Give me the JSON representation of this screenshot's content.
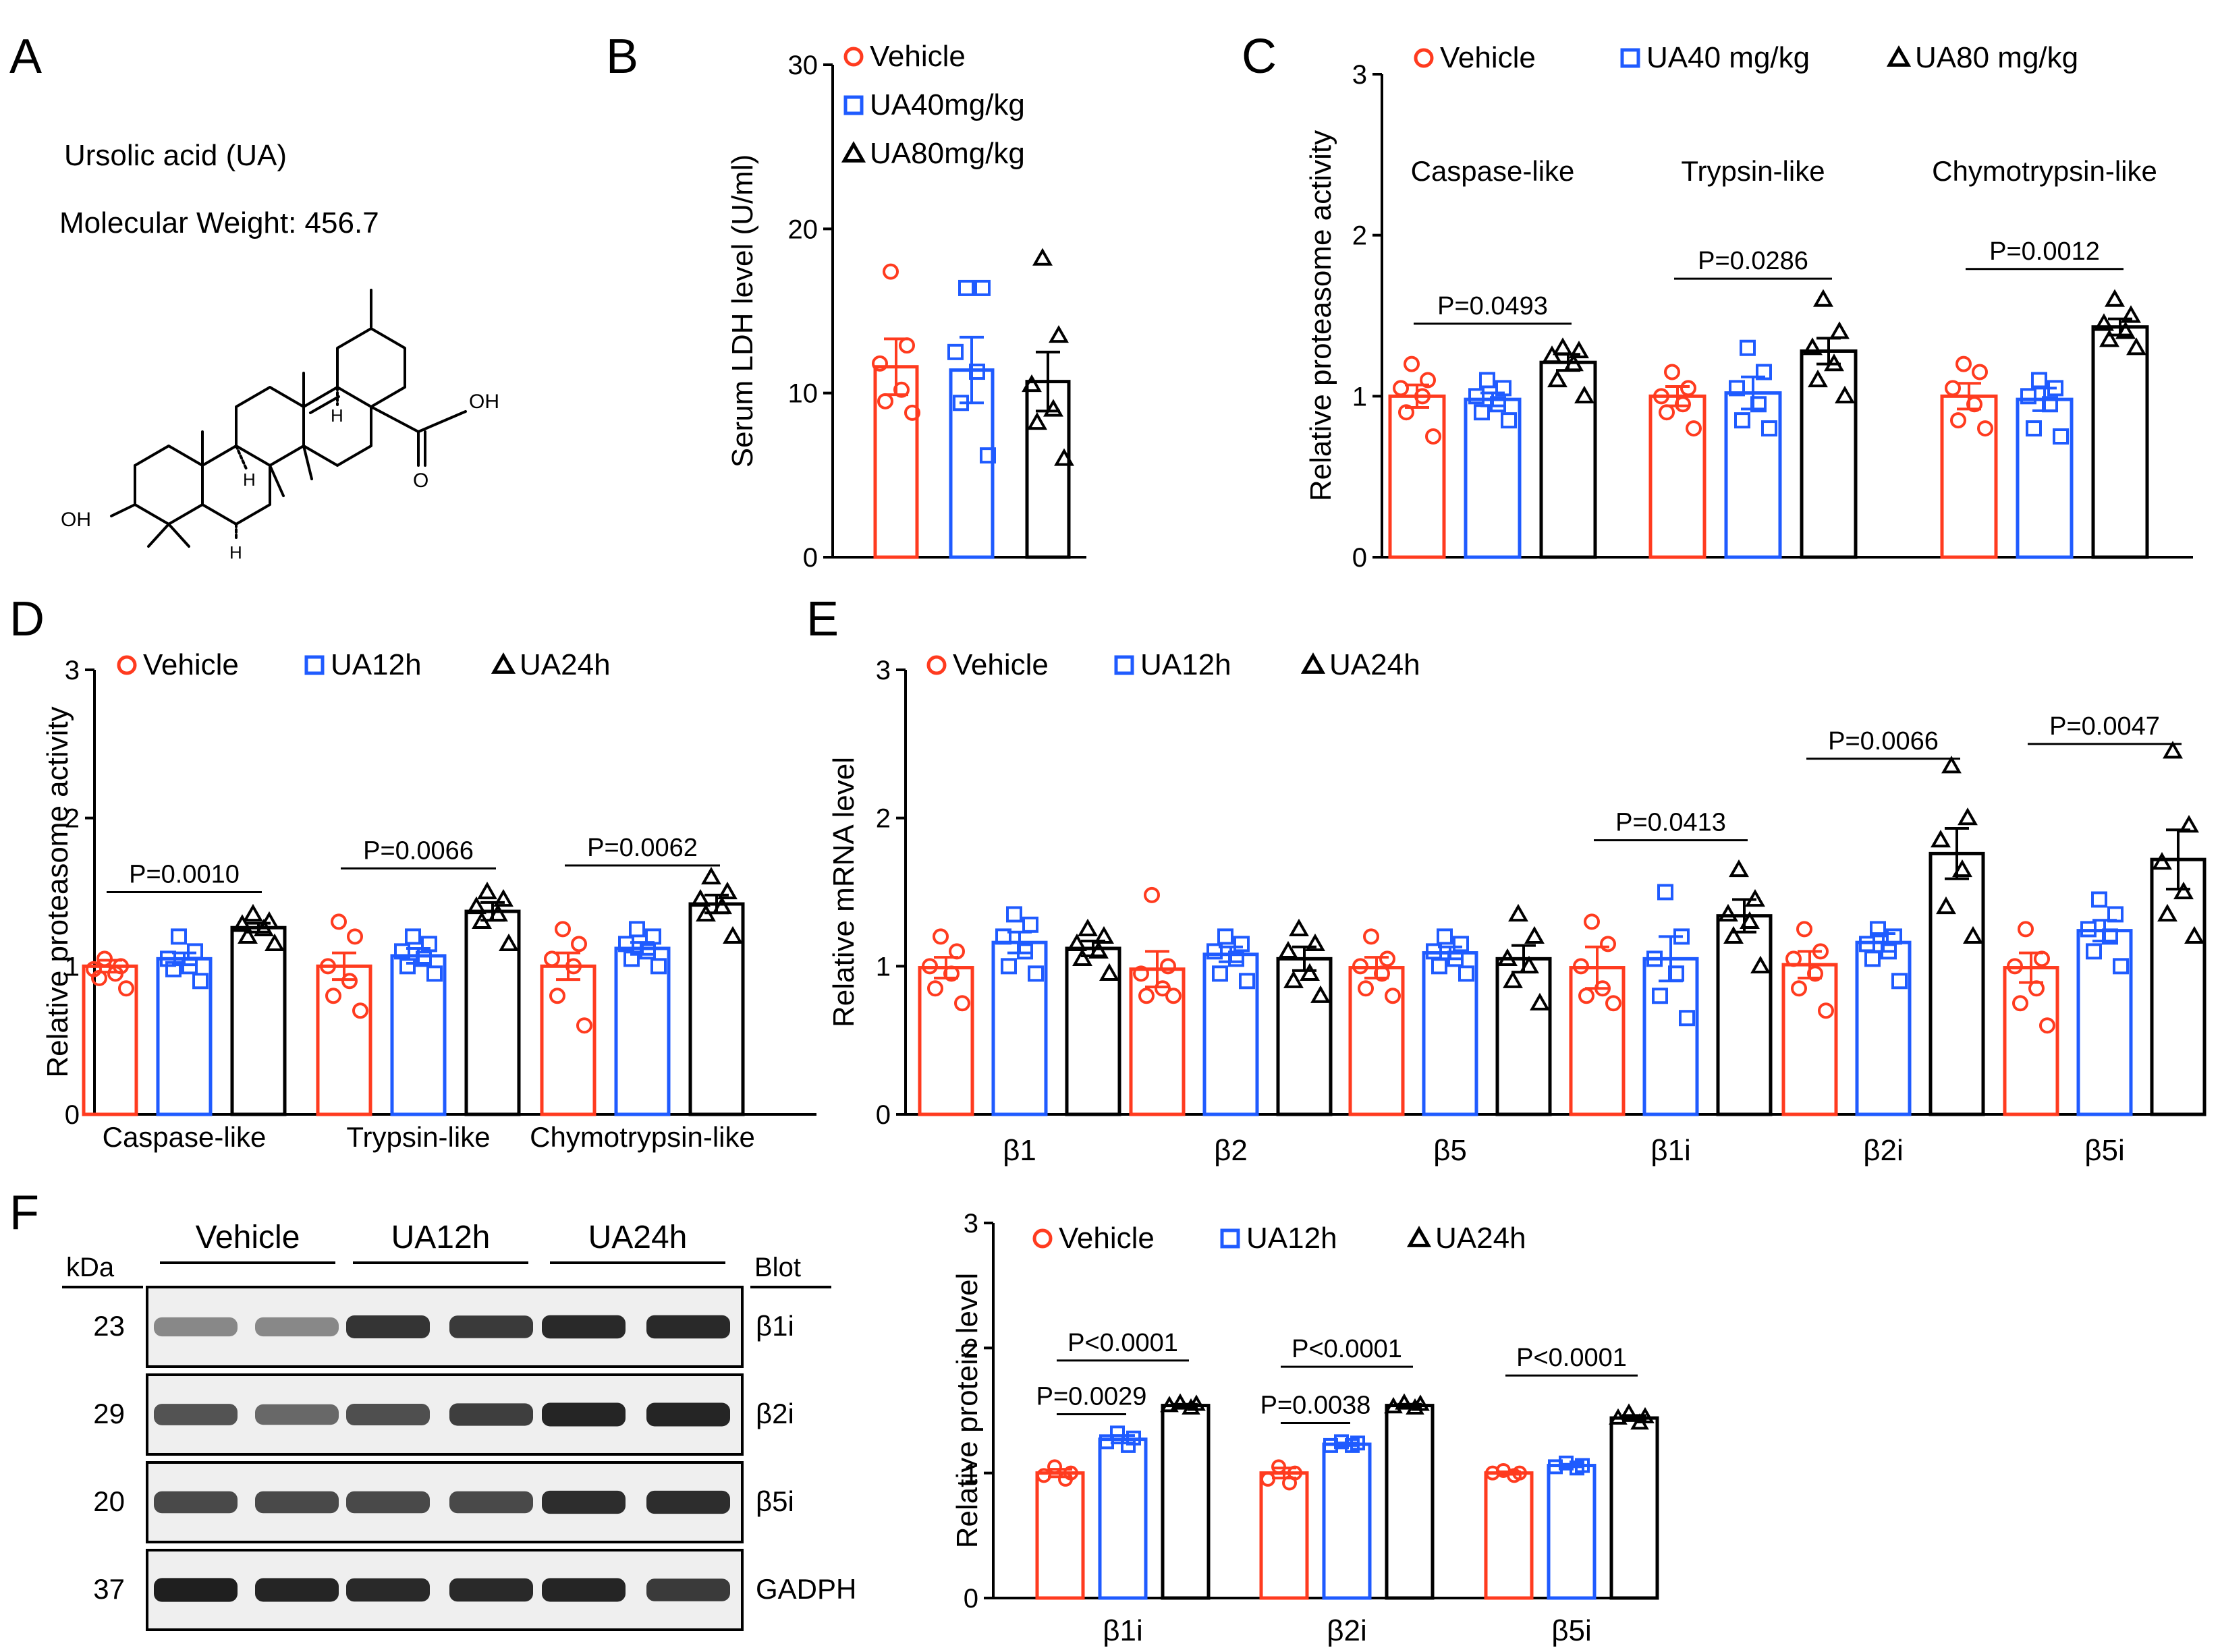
{
  "colors": {
    "vehicle": "#ff3b1f",
    "mid": "#1f5bff",
    "high": "#000000",
    "axis": "#000000"
  },
  "panels": {
    "A": {
      "letter": "A",
      "compound_name": "Ursolic acid (UA)",
      "molecular_weight": "Molecular Weight: 456.7",
      "atom_labels": {
        "hydroxyl": "OH",
        "carboxyl_oh": "OH",
        "carboxyl_o": "O",
        "h": "H"
      }
    },
    "B": {
      "letter": "B"
    },
    "C": {
      "letter": "C"
    },
    "D": {
      "letter": "D"
    },
    "E": {
      "letter": "E"
    },
    "F": {
      "letter": "F"
    }
  },
  "western_blot": {
    "kda_label": "kDa",
    "blot_label": "Blot",
    "groups": [
      "Vehicle",
      "UA12h",
      "UA24h"
    ],
    "rows": [
      {
        "kda": "23",
        "protein": "β1i",
        "intensity": [
          0.45,
          0.45,
          0.85,
          0.82,
          0.9,
          0.9
        ]
      },
      {
        "kda": "29",
        "protein": "β2i",
        "intensity": [
          0.7,
          0.6,
          0.72,
          0.8,
          0.92,
          0.92
        ]
      },
      {
        "kda": "20",
        "protein": "β5i",
        "intensity": [
          0.75,
          0.75,
          0.75,
          0.75,
          0.88,
          0.88
        ]
      },
      {
        "kda": "37",
        "protein": "GADPH",
        "intensity": [
          0.95,
          0.92,
          0.9,
          0.9,
          0.92,
          0.82
        ]
      }
    ]
  },
  "chart_data": [
    {
      "id": "B",
      "type": "bar",
      "ylabel": "Serum LDH level (U/ml)",
      "ylim": [
        0,
        30
      ],
      "yticks": [
        0,
        10,
        20,
        30
      ],
      "legend": [
        "Vehicle",
        "UA40mg/kg",
        "UA80mg/kg"
      ],
      "legend_position": "top-right",
      "categories": [
        ""
      ],
      "series": [
        {
          "name": "Vehicle",
          "values": [
            11.6
          ],
          "sem": [
            1.7
          ],
          "points": [
            [
              17.4,
              12.9,
              11.8,
              10.2,
              9.5,
              8.8
            ]
          ]
        },
        {
          "name": "UA40mg/kg",
          "values": [
            11.4
          ],
          "sem": [
            2.0
          ],
          "points": [
            [
              16.4,
              16.4,
              12.5,
              11.3,
              9.4,
              6.2
            ]
          ]
        },
        {
          "name": "UA80mg/kg",
          "values": [
            10.7
          ],
          "sem": [
            1.8
          ],
          "points": [
            [
              18.2,
              13.5,
              10.5,
              9.0,
              8.2,
              6.0
            ]
          ]
        }
      ],
      "annotations": []
    },
    {
      "id": "C",
      "type": "bar",
      "ylabel": "Relative proteasome activity",
      "ylim": [
        0,
        3
      ],
      "yticks": [
        0,
        1,
        2,
        3
      ],
      "legend": [
        "Vehicle",
        "UA40 mg/kg",
        "UA80 mg/kg"
      ],
      "legend_position": "top",
      "categories": [
        "Caspase-like",
        "Trypsin-like",
        "Chymotrypsin-like"
      ],
      "series": [
        {
          "name": "Vehicle",
          "values": [
            1.0,
            1.0,
            1.0
          ],
          "sem": [
            0.07,
            0.06,
            0.08
          ],
          "points": [
            [
              1.2,
              1.1,
              1.05,
              1.0,
              0.9,
              0.75
            ],
            [
              1.15,
              1.05,
              1.0,
              0.95,
              0.9,
              0.8
            ],
            [
              1.2,
              1.15,
              1.05,
              0.95,
              0.85,
              0.8
            ]
          ]
        },
        {
          "name": "UA40 mg/kg",
          "values": [
            0.98,
            1.02,
            0.98
          ],
          "sem": [
            0.04,
            0.1,
            0.07
          ],
          "points": [
            [
              1.1,
              1.05,
              1.0,
              0.95,
              0.9,
              0.85
            ],
            [
              1.3,
              1.15,
              1.05,
              0.95,
              0.85,
              0.8
            ],
            [
              1.1,
              1.05,
              1.0,
              0.95,
              0.8,
              0.75
            ]
          ]
        },
        {
          "name": "UA80 mg/kg",
          "values": [
            1.21,
            1.28,
            1.43
          ],
          "sem": [
            0.05,
            0.08,
            0.05
          ],
          "points": [
            [
              1.3,
              1.28,
              1.25,
              1.2,
              1.1,
              1.0
            ],
            [
              1.6,
              1.4,
              1.3,
              1.2,
              1.1,
              1.0
            ],
            [
              1.6,
              1.5,
              1.45,
              1.4,
              1.35,
              1.3
            ]
          ]
        }
      ],
      "annotations": [
        {
          "category": 0,
          "from": 0,
          "to": 2,
          "y": 1.45,
          "label": "P=0.0493"
        },
        {
          "category": 1,
          "from": 0,
          "to": 2,
          "y": 1.73,
          "label": "P=0.0286"
        },
        {
          "category": 2,
          "from": 0,
          "to": 2,
          "y": 1.79,
          "label": "P=0.0012"
        }
      ]
    },
    {
      "id": "D",
      "type": "bar",
      "ylabel": "Relative proteasome activity",
      "ylim": [
        0,
        3
      ],
      "yticks": [
        0,
        1,
        2,
        3
      ],
      "legend": [
        "Vehicle",
        "UA12h",
        "UA24h"
      ],
      "legend_position": "top",
      "categories": [
        "Caspase-like",
        "Trypsin-like",
        "Chymotrypsin-like"
      ],
      "series": [
        {
          "name": "Vehicle",
          "values": [
            1.0,
            1.0,
            1.0
          ],
          "sem": [
            0.04,
            0.09,
            0.09
          ],
          "points": [
            [
              1.05,
              1.0,
              0.98,
              0.95,
              0.92,
              0.85
            ],
            [
              1.3,
              1.2,
              1.0,
              0.9,
              0.8,
              0.7
            ],
            [
              1.25,
              1.15,
              1.05,
              1.0,
              0.8,
              0.6
            ]
          ]
        },
        {
          "name": "UA12h",
          "values": [
            1.05,
            1.07,
            1.12
          ],
          "sem": [
            0.04,
            0.05,
            0.04
          ],
          "points": [
            [
              1.2,
              1.1,
              1.05,
              1.0,
              0.98,
              0.9
            ],
            [
              1.2,
              1.15,
              1.1,
              1.05,
              1.0,
              0.95
            ],
            [
              1.25,
              1.2,
              1.15,
              1.1,
              1.05,
              1.0
            ]
          ]
        },
        {
          "name": "UA24h",
          "values": [
            1.26,
            1.37,
            1.42
          ],
          "sem": [
            0.03,
            0.06,
            0.06
          ],
          "points": [
            [
              1.35,
              1.3,
              1.28,
              1.25,
              1.2,
              1.15
            ],
            [
              1.5,
              1.45,
              1.4,
              1.35,
              1.3,
              1.15
            ],
            [
              1.6,
              1.5,
              1.45,
              1.4,
              1.35,
              1.2
            ]
          ]
        }
      ],
      "annotations": [
        {
          "category": 0,
          "from": 0,
          "to": 2,
          "y": 1.5,
          "label": "P=0.0010"
        },
        {
          "category": 1,
          "from": 0,
          "to": 2,
          "y": 1.66,
          "label": "P=0.0066"
        },
        {
          "category": 2,
          "from": 0,
          "to": 2,
          "y": 1.68,
          "label": "P=0.0062"
        }
      ]
    },
    {
      "id": "E",
      "type": "bar",
      "ylabel": "Relative mRNA level",
      "ylim": [
        0,
        3
      ],
      "yticks": [
        0,
        1,
        2,
        3
      ],
      "legend": [
        "Vehicle",
        "UA12h",
        "UA24h"
      ],
      "legend_position": "top",
      "categories": [
        "β1",
        "β2",
        "β5",
        "β1i",
        "β2i",
        "β5i"
      ],
      "series": [
        {
          "name": "Vehicle",
          "values": [
            0.99,
            0.98,
            0.99,
            0.99,
            1.01,
            0.99
          ],
          "sem": [
            0.07,
            0.12,
            0.07,
            0.14,
            0.09,
            0.1
          ],
          "points": [
            [
              1.2,
              1.1,
              1.0,
              0.95,
              0.85,
              0.75
            ],
            [
              1.48,
              1.0,
              0.95,
              0.85,
              0.8,
              0.8
            ],
            [
              1.2,
              1.05,
              1.0,
              0.95,
              0.85,
              0.8
            ],
            [
              1.3,
              1.15,
              1.0,
              0.85,
              0.8,
              0.75
            ],
            [
              1.25,
              1.1,
              1.05,
              0.95,
              0.85,
              0.7
            ],
            [
              1.25,
              1.05,
              1.0,
              0.85,
              0.75,
              0.6
            ]
          ]
        },
        {
          "name": "UA12h",
          "values": [
            1.16,
            1.08,
            1.09,
            1.05,
            1.16,
            1.24
          ],
          "sem": [
            0.07,
            0.05,
            0.04,
            0.15,
            0.06,
            0.07
          ],
          "points": [
            [
              1.35,
              1.28,
              1.2,
              1.1,
              1.0,
              0.95
            ],
            [
              1.2,
              1.15,
              1.1,
              1.05,
              0.95,
              0.9
            ],
            [
              1.2,
              1.15,
              1.1,
              1.05,
              1.0,
              0.95
            ],
            [
              1.5,
              1.2,
              1.05,
              0.95,
              0.8,
              0.65
            ],
            [
              1.25,
              1.2,
              1.15,
              1.1,
              1.05,
              0.9
            ],
            [
              1.45,
              1.35,
              1.25,
              1.2,
              1.1,
              1.0
            ]
          ]
        },
        {
          "name": "UA24h",
          "values": [
            1.12,
            1.05,
            1.05,
            1.34,
            1.76,
            1.72
          ],
          "sem": [
            0.05,
            0.08,
            0.09,
            0.11,
            0.17,
            0.2
          ],
          "points": [
            [
              1.25,
              1.2,
              1.15,
              1.1,
              1.05,
              0.95
            ],
            [
              1.25,
              1.15,
              1.1,
              0.95,
              0.9,
              0.8
            ],
            [
              1.35,
              1.2,
              1.05,
              1.0,
              0.9,
              0.75
            ],
            [
              1.65,
              1.45,
              1.35,
              1.3,
              1.2,
              1.0
            ],
            [
              2.35,
              2.0,
              1.85,
              1.65,
              1.4,
              1.2
            ],
            [
              2.45,
              1.95,
              1.7,
              1.5,
              1.35,
              1.2
            ]
          ]
        }
      ],
      "annotations": [
        {
          "category": 3,
          "from": 0,
          "to": 2,
          "y": 1.85,
          "label": "P=0.0413"
        },
        {
          "category": 4,
          "from": 0,
          "to": 2,
          "y": 2.4,
          "label": "P=0.0066"
        },
        {
          "category": 5,
          "from": 0,
          "to": 2,
          "y": 2.5,
          "label": "P=0.0047"
        }
      ]
    },
    {
      "id": "F",
      "type": "bar",
      "ylabel": "Relative protein level",
      "ylim": [
        0,
        3
      ],
      "yticks": [
        0,
        1,
        2,
        3
      ],
      "legend": [
        "Vehicle",
        "UA12h",
        "UA24h"
      ],
      "legend_position": "top",
      "categories": [
        "β1i",
        "β2i",
        "β5i"
      ],
      "series": [
        {
          "name": "Vehicle",
          "values": [
            1.0,
            1.0,
            1.0
          ],
          "sem": [
            0.03,
            0.04,
            0.01
          ],
          "points": [
            [
              1.05,
              1.0,
              0.98,
              0.95
            ],
            [
              1.05,
              1.0,
              0.95,
              0.92
            ],
            [
              1.02,
              1.0,
              1.0,
              0.98
            ]
          ]
        },
        {
          "name": "UA12h",
          "values": [
            1.27,
            1.23,
            1.06
          ],
          "sem": [
            0.03,
            0.01,
            0.01
          ],
          "points": [
            [
              1.32,
              1.28,
              1.25,
              1.22
            ],
            [
              1.25,
              1.24,
              1.22,
              1.22
            ],
            [
              1.08,
              1.06,
              1.05,
              1.04
            ]
          ]
        },
        {
          "name": "UA24h",
          "values": [
            1.54,
            1.54,
            1.44
          ],
          "sem": [
            0.01,
            0.01,
            0.02
          ],
          "points": [
            [
              1.56,
              1.55,
              1.54,
              1.52
            ],
            [
              1.56,
              1.55,
              1.53,
              1.52
            ],
            [
              1.48,
              1.45,
              1.44,
              1.4
            ]
          ]
        }
      ],
      "annotations": [
        {
          "category": 0,
          "from": 0,
          "to": 1,
          "y": 1.47,
          "label": "P=0.0029"
        },
        {
          "category": 0,
          "from": 0,
          "to": 2,
          "y": 1.9,
          "label": "P<0.0001"
        },
        {
          "category": 1,
          "from": 0,
          "to": 1,
          "y": 1.4,
          "label": "P=0.0038"
        },
        {
          "category": 1,
          "from": 0,
          "to": 2,
          "y": 1.85,
          "label": "P<0.0001"
        },
        {
          "category": 2,
          "from": 0,
          "to": 2,
          "y": 1.78,
          "label": "P<0.0001"
        }
      ]
    }
  ]
}
